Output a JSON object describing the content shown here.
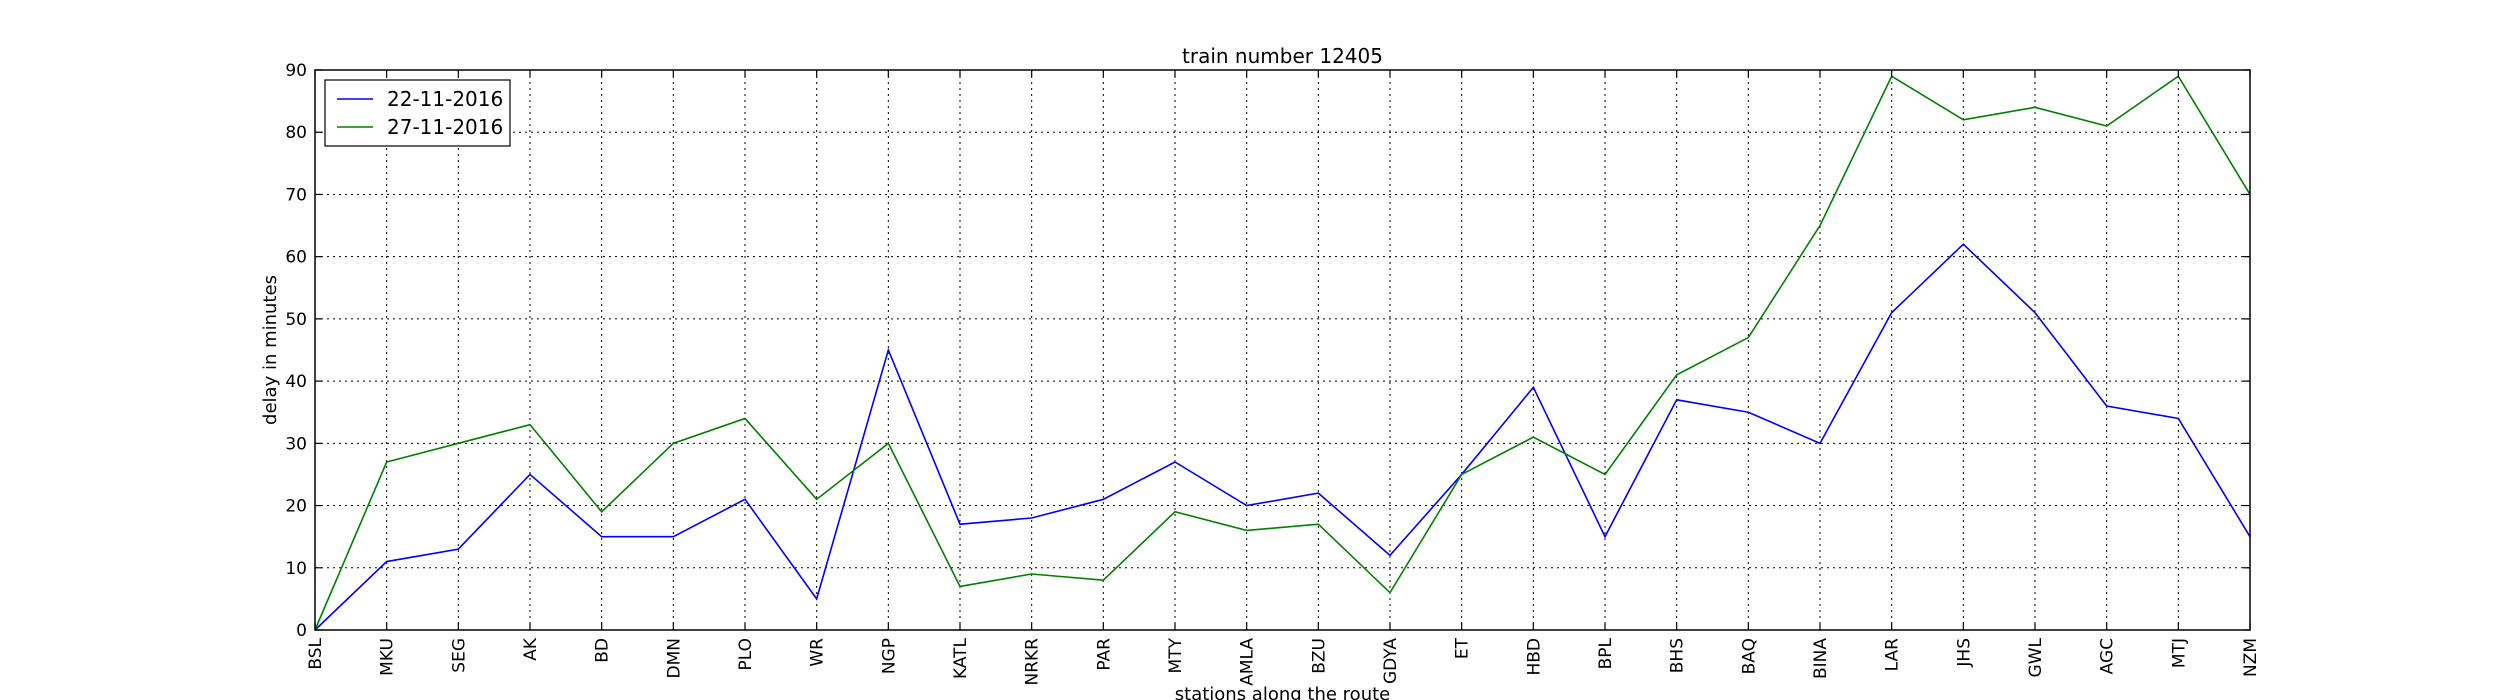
{
  "chart_data": {
    "type": "line",
    "title": "train number 12405",
    "xlabel": "stations along the route",
    "ylabel": "delay in minutes",
    "ylim": [
      0,
      90
    ],
    "yticks": [
      0,
      10,
      20,
      30,
      40,
      50,
      60,
      70,
      80,
      90
    ],
    "grid": true,
    "legend_position": "top-left",
    "categories": [
      "BSL",
      "MKU",
      "SEG",
      "AK",
      "BD",
      "DMN",
      "PLO",
      "WR",
      "NGP",
      "KATL",
      "NRKR",
      "PAR",
      "MTY",
      "AMLA",
      "BZU",
      "GDYA",
      "ET",
      "HBD",
      "BPL",
      "BHS",
      "BAQ",
      "BINA",
      "LAR",
      "JHS",
      "GWL",
      "AGC",
      "MTJ",
      "NZM"
    ],
    "series": [
      {
        "name": "22-11-2016",
        "color": "#0000ff",
        "values": [
          0,
          11,
          13,
          25,
          15,
          15,
          21,
          5,
          45,
          17,
          18,
          21,
          27,
          20,
          22,
          12,
          25,
          39,
          15,
          37,
          35,
          30,
          51,
          62,
          51,
          36,
          34,
          15
        ]
      },
      {
        "name": "27-11-2016",
        "color": "#008000",
        "values": [
          0,
          27,
          30,
          33,
          19,
          30,
          34,
          21,
          30,
          7,
          9,
          8,
          19,
          16,
          17,
          6,
          25,
          31,
          25,
          41,
          47,
          65,
          89,
          82,
          84,
          81,
          89,
          70
        ]
      }
    ]
  }
}
